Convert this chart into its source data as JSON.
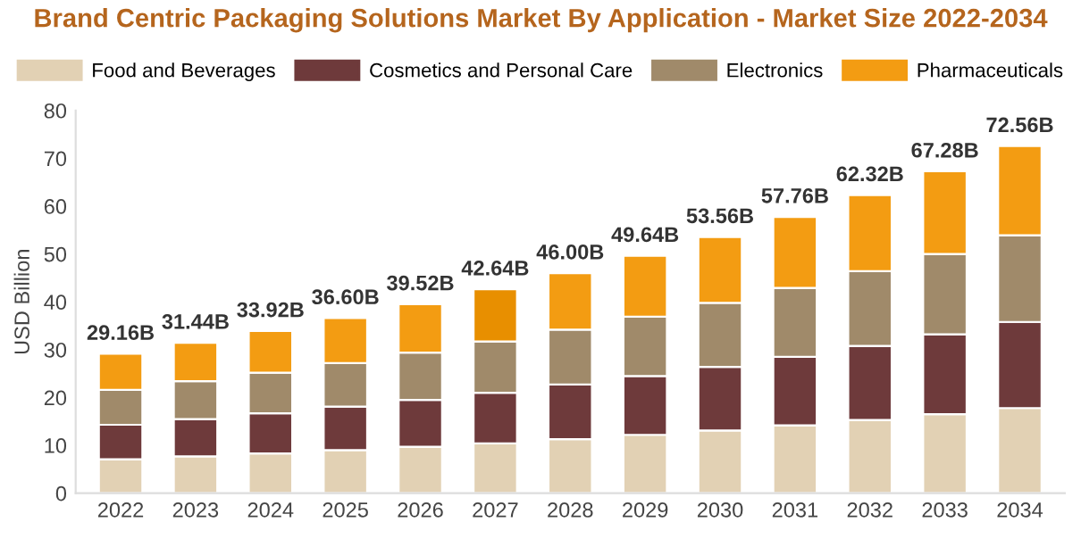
{
  "chart_data": {
    "type": "bar",
    "stacked": true,
    "title": "Brand Centric Packaging Solutions Market By Application - Market Size 2022-2034",
    "ylabel": "USD Billion",
    "categories": [
      "2022",
      "2023",
      "2024",
      "2025",
      "2026",
      "2027",
      "2028",
      "2029",
      "2030",
      "2031",
      "2032",
      "2033",
      "2034"
    ],
    "series": [
      {
        "name": "Food and Beverages",
        "color": "#e2d1b4",
        "values": [
          7.1,
          7.7,
          8.3,
          9.0,
          9.7,
          10.4,
          11.3,
          12.2,
          13.1,
          14.2,
          15.3,
          16.5,
          17.8
        ]
      },
      {
        "name": "Cosmetics and Personal Care",
        "color": "#6e3a3b",
        "values": [
          7.2,
          7.8,
          8.4,
          9.1,
          9.8,
          10.6,
          11.4,
          12.3,
          13.3,
          14.3,
          15.5,
          16.7,
          18.0
        ]
      },
      {
        "name": "Electronics",
        "color": "#a08a6a",
        "values": [
          7.3,
          7.9,
          8.5,
          9.1,
          9.9,
          10.7,
          11.5,
          12.4,
          13.4,
          14.4,
          15.6,
          16.8,
          18.1
        ]
      },
      {
        "name": "Pharmaceuticals",
        "color": "#f39c12",
        "colors": [
          "#f39c12",
          "#f39c12",
          "#f39c12",
          "#f39c12",
          "#f39c12",
          "#e88f00",
          "#f39c12",
          "#f39c12",
          "#f39c12",
          "#f39c12",
          "#f39c12",
          "#f39c12",
          "#f39c12"
        ],
        "values": [
          7.56,
          8.04,
          8.72,
          9.4,
          10.12,
          10.94,
          11.8,
          12.74,
          13.76,
          14.86,
          15.92,
          17.28,
          18.66
        ]
      }
    ],
    "totals": [
      "29.16B",
      "31.44B",
      "33.92B",
      "36.60B",
      "39.52B",
      "42.64B",
      "46.00B",
      "49.64B",
      "53.56B",
      "57.76B",
      "62.32B",
      "67.28B",
      "72.56B"
    ],
    "ylim": [
      0,
      80
    ],
    "yticks": [
      0,
      10,
      20,
      30,
      40,
      50,
      60,
      70,
      80
    ],
    "grid": false,
    "legend": "top"
  }
}
